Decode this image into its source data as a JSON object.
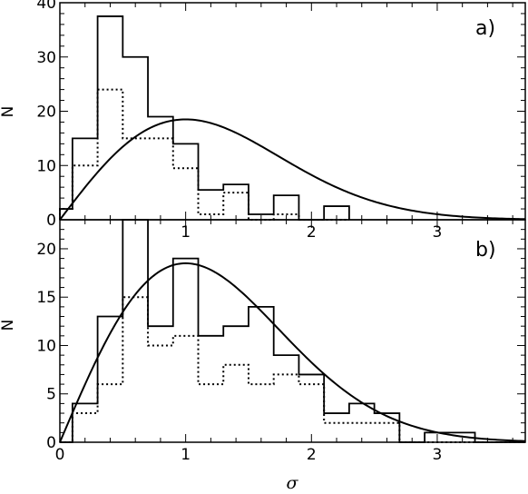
{
  "chart_data": [
    {
      "type": "histogram",
      "panel_label": "a)",
      "xlabel": "",
      "ylabel": "N",
      "xlim": [
        0,
        3.7
      ],
      "ylim": [
        0,
        40
      ],
      "xticks": [
        0,
        1,
        2,
        3
      ],
      "xtick_labels": [
        "",
        "1",
        "2",
        "3"
      ],
      "yticks": [
        0,
        10,
        20,
        30,
        40
      ],
      "ytick_labels": [
        "0",
        "10",
        "20",
        "30",
        "40"
      ],
      "bin_edges": [
        0,
        0.1,
        0.3,
        0.5,
        0.7,
        0.9,
        1.1,
        1.3,
        1.5,
        1.7,
        1.9,
        2.1,
        2.3
      ],
      "series": [
        {
          "style": "solid",
          "values": [
            2,
            15,
            37.5,
            30,
            19,
            14,
            5.5,
            6.5,
            1,
            4.5,
            0,
            2.5
          ]
        },
        {
          "style": "dotted",
          "values": [
            2,
            10,
            24,
            15,
            15,
            9.5,
            1,
            5,
            0,
            1,
            0,
            0
          ]
        },
        {
          "style": "curve",
          "kind": "rayleigh",
          "sigma": 1.0,
          "peak": 18.5
        }
      ]
    },
    {
      "type": "histogram",
      "panel_label": "b)",
      "xlabel": "σ",
      "ylabel": "N",
      "xlim": [
        0,
        3.7
      ],
      "ylim": [
        0,
        23
      ],
      "xticks": [
        0,
        1,
        2,
        3
      ],
      "xtick_labels": [
        "0",
        "1",
        "2",
        "3"
      ],
      "yticks": [
        0,
        5,
        10,
        15,
        20
      ],
      "ytick_labels": [
        "0",
        "5",
        "10",
        "15",
        "20"
      ],
      "bin_edges": [
        0,
        0.1,
        0.3,
        0.5,
        0.7,
        0.9,
        1.1,
        1.3,
        1.5,
        1.7,
        1.9,
        2.1,
        2.3,
        2.5,
        2.7,
        2.9,
        3.1,
        3.3,
        3.7
      ],
      "series": [
        {
          "style": "solid",
          "values": [
            0,
            4,
            13,
            23,
            12,
            19,
            11,
            12,
            14,
            9,
            7,
            3,
            4,
            3,
            0,
            1,
            1,
            0
          ]
        },
        {
          "style": "dotted",
          "values": [
            0,
            3,
            6,
            15,
            10,
            11,
            6,
            8,
            6,
            7,
            6,
            2,
            2,
            2,
            0,
            0,
            0,
            0
          ]
        },
        {
          "style": "curve",
          "kind": "rayleigh",
          "sigma": 1.0,
          "peak": 18.5
        }
      ]
    }
  ]
}
